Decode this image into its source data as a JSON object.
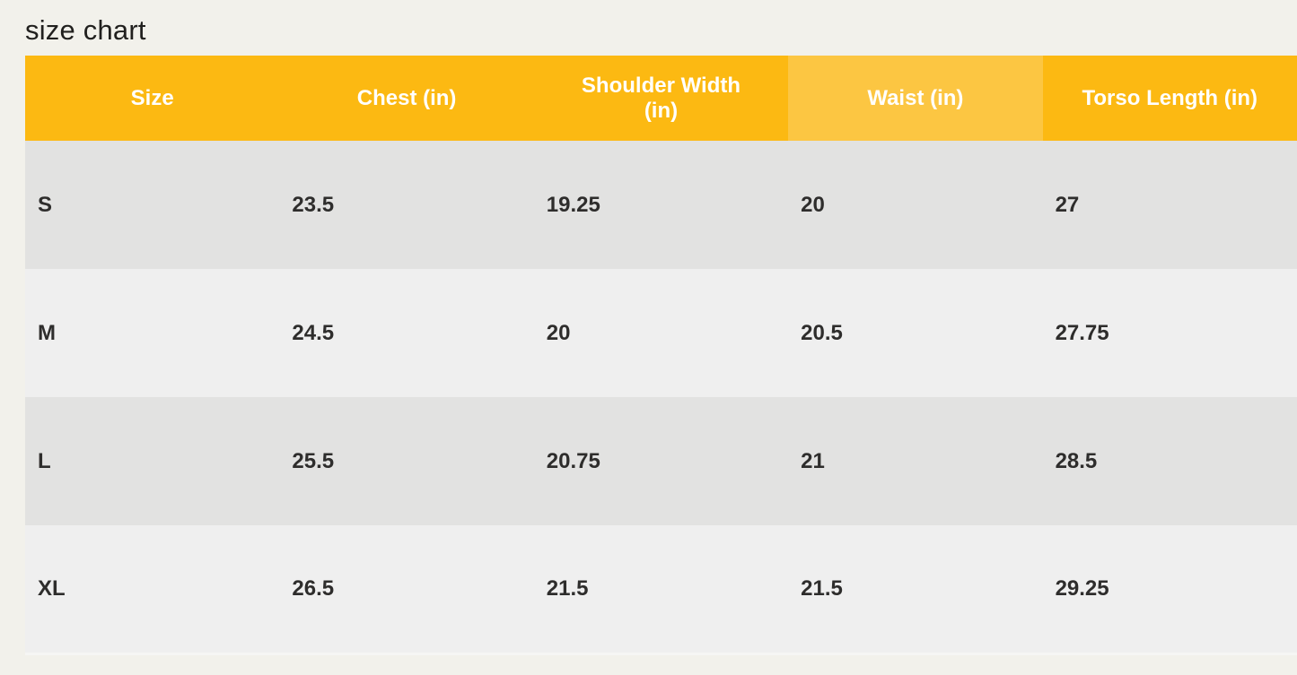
{
  "page": {
    "title": "size chart",
    "background_color": "#F2F1EB"
  },
  "table": {
    "columns": [
      "Size",
      "Chest (in)",
      "Shoulder Width (in)",
      "Waist (in)",
      "Torso Length (in)"
    ],
    "rows": [
      {
        "cells": [
          "S",
          "23.5",
          "19.25",
          "20",
          "27"
        ]
      },
      {
        "cells": [
          "M",
          "24.5",
          "20",
          "20.5",
          "27.75"
        ]
      },
      {
        "cells": [
          "L",
          "25.5",
          "20.75",
          "21",
          "28.5"
        ]
      },
      {
        "cells": [
          "XL",
          "26.5",
          "21.5",
          "21.5",
          "29.25"
        ]
      }
    ],
    "colors": {
      "header_bg": "#FCB912",
      "header_bg_waist_highlight": "#FCC642",
      "header_text": "#FFFFFF",
      "row_dark_bg": "#E2E2E1",
      "row_light_bg": "#EFEFEF",
      "cell_text": "#2E2D2C",
      "title_text": "#21201E"
    }
  },
  "chart_data": {
    "type": "table",
    "title": "size chart",
    "columns": [
      "Size",
      "Chest (in)",
      "Shoulder Width (in)",
      "Waist (in)",
      "Torso Length (in)"
    ],
    "rows": [
      [
        "S",
        23.5,
        19.25,
        20,
        27
      ],
      [
        "M",
        24.5,
        20,
        20.5,
        27.75
      ],
      [
        "L",
        25.5,
        20.75,
        21,
        28.5
      ],
      [
        "XL",
        26.5,
        21.5,
        21.5,
        29.25
      ]
    ],
    "layout_hints": {
      "header_fill": "amber",
      "waist_column_header_lighter": true,
      "row_striping": [
        "dark-gray",
        "light-gray"
      ],
      "cell_alignment": "left",
      "header_alignment": "center"
    }
  }
}
